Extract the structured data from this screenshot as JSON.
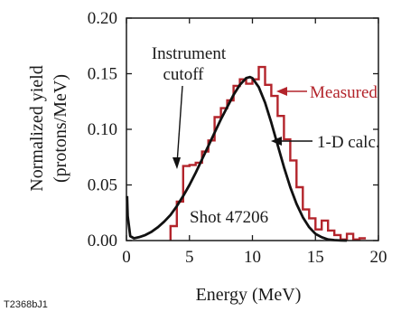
{
  "chart_data": {
    "type": "line",
    "xlabel": "Energy (MeV)",
    "ylabel_line1": "Normalized yield",
    "ylabel_line2": "(protons/MeV)",
    "xlim": [
      0,
      20
    ],
    "ylim": [
      0,
      0.2
    ],
    "x_ticks": [
      0,
      5,
      10,
      15,
      20
    ],
    "x_tick_labels": [
      "0",
      "5",
      "10",
      "15",
      "20"
    ],
    "y_ticks": [
      0,
      0.05,
      0.1,
      0.15,
      0.2
    ],
    "y_tick_labels": [
      "0.00",
      "0.05",
      "0.10",
      "0.15",
      "0.20"
    ],
    "grid": false,
    "series": [
      {
        "name": "Measured",
        "style": "step",
        "color": "#b3242b",
        "bin_edges": [
          3.5,
          4.0,
          4.5,
          5.0,
          5.5,
          6.0,
          6.5,
          7.0,
          7.5,
          8.0,
          8.5,
          9.0,
          9.5,
          10.0,
          10.5,
          11.0,
          11.5,
          12.0,
          12.5,
          13.0,
          13.5,
          14.0,
          14.5,
          15.0,
          15.5,
          16.0,
          16.5,
          17.0,
          17.5,
          18.0,
          18.5,
          19.0
        ],
        "values": [
          0.013,
          0.035,
          0.067,
          0.068,
          0.07,
          0.08,
          0.09,
          0.111,
          0.119,
          0.126,
          0.139,
          0.145,
          0.141,
          0.145,
          0.156,
          0.14,
          0.13,
          0.112,
          0.091,
          0.072,
          0.048,
          0.028,
          0.02,
          0.01,
          0.018,
          0.009,
          0.005,
          0.001,
          0.006,
          0.001,
          0.002
        ]
      },
      {
        "name": "1-D calc.",
        "style": "line",
        "color": "#111111",
        "x": [
          0.05,
          0.1,
          0.3,
          0.6,
          1.0,
          1.5,
          2.0,
          2.5,
          3.0,
          3.5,
          4.0,
          4.5,
          5.0,
          5.5,
          6.0,
          6.5,
          7.0,
          7.5,
          8.0,
          8.5,
          9.0,
          9.5,
          9.8,
          10.0,
          10.5,
          11.0,
          11.5,
          12.0,
          12.5,
          13.0,
          13.5,
          14.0,
          14.5,
          15.0,
          15.5,
          16.0,
          16.5,
          17.0,
          17.5
        ],
        "y": [
          0.04,
          0.022,
          0.004,
          0.002,
          0.003,
          0.005,
          0.008,
          0.012,
          0.017,
          0.023,
          0.031,
          0.04,
          0.05,
          0.061,
          0.073,
          0.085,
          0.097,
          0.109,
          0.12,
          0.131,
          0.14,
          0.146,
          0.147,
          0.146,
          0.138,
          0.124,
          0.106,
          0.086,
          0.066,
          0.048,
          0.033,
          0.021,
          0.012,
          0.006,
          0.003,
          0.001,
          0.0004,
          0.0001,
          0
        ]
      }
    ],
    "annotations": [
      {
        "text": "Instrument",
        "target": "instrument-cutoff"
      },
      {
        "text": "cutoff",
        "target": "instrument-cutoff"
      },
      {
        "text": "Measured",
        "target": "measured"
      },
      {
        "text": "1-D calc.",
        "target": "calc"
      },
      {
        "text": "Shot 47206",
        "target": "shot"
      }
    ],
    "figure_id": "T2368bJ1"
  }
}
